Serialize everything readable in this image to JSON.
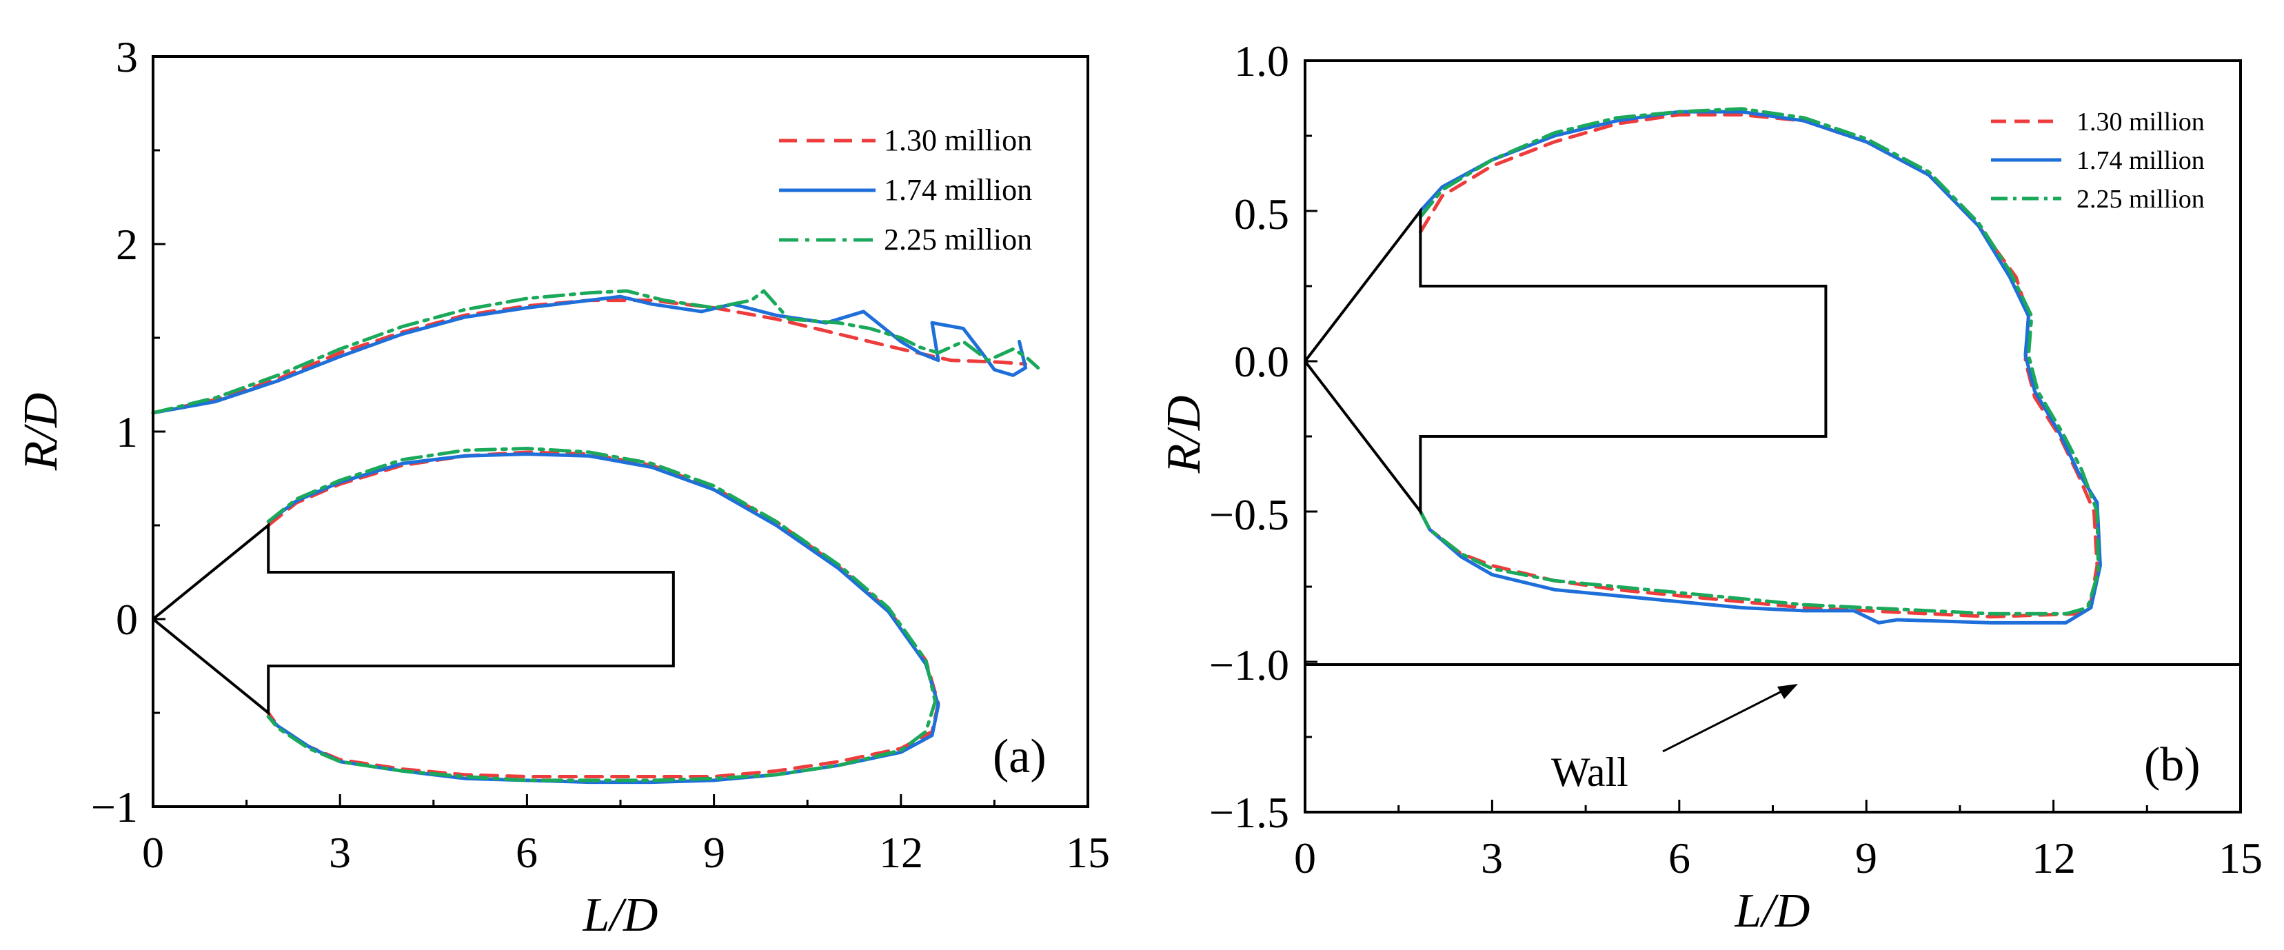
{
  "chart_data": [
    {
      "type": "line",
      "panel_label": "(a)",
      "xlabel": "L/D",
      "ylabel": "R/D",
      "xlim": [
        0,
        15
      ],
      "ylim": [
        -1,
        3
      ],
      "xticks": [
        "0",
        "3",
        "6",
        "9",
        "12",
        "15"
      ],
      "yticks": [
        "−1",
        "0",
        "1",
        "2",
        "3"
      ],
      "legend": [
        "1.30 million",
        "1.74 million",
        "2.25 million"
      ],
      "legend_position": "top-right",
      "series": [
        {
          "name": "1.30 million",
          "color": "#ee3b3b",
          "style": "dashed",
          "upper_curve": [
            [
              0,
              1.1
            ],
            [
              1,
              1.17
            ],
            [
              2,
              1.28
            ],
            [
              3,
              1.42
            ],
            [
              4,
              1.53
            ],
            [
              5,
              1.62
            ],
            [
              6,
              1.67
            ],
            [
              7,
              1.7
            ],
            [
              8,
              1.7
            ],
            [
              9,
              1.66
            ],
            [
              10,
              1.6
            ],
            [
              11,
              1.52
            ],
            [
              12,
              1.44
            ],
            [
              12.8,
              1.38
            ],
            [
              13.6,
              1.37
            ],
            [
              14,
              1.36
            ]
          ],
          "lower_curve": [
            [
              1.85,
              0.5
            ],
            [
              2.3,
              0.62
            ],
            [
              3,
              0.72
            ],
            [
              4,
              0.82
            ],
            [
              5,
              0.87
            ],
            [
              6,
              0.89
            ],
            [
              7,
              0.88
            ],
            [
              8,
              0.82
            ],
            [
              9,
              0.7
            ],
            [
              10,
              0.52
            ],
            [
              11,
              0.28
            ],
            [
              11.8,
              0.05
            ],
            [
              12.4,
              -0.22
            ],
            [
              12.6,
              -0.45
            ],
            [
              12.5,
              -0.6
            ],
            [
              12,
              -0.69
            ],
            [
              11,
              -0.76
            ],
            [
              10,
              -0.81
            ],
            [
              9,
              -0.84
            ],
            [
              8,
              -0.84
            ],
            [
              7,
              -0.84
            ],
            [
              6,
              -0.84
            ],
            [
              5,
              -0.83
            ],
            [
              4,
              -0.8
            ],
            [
              3,
              -0.75
            ],
            [
              2.5,
              -0.68
            ],
            [
              2,
              -0.57
            ],
            [
              1.85,
              -0.5
            ]
          ]
        },
        {
          "name": "1.74 million",
          "color": "#1e6fd9",
          "style": "solid",
          "upper_curve": [
            [
              0,
              1.1
            ],
            [
              1,
              1.16
            ],
            [
              2,
              1.27
            ],
            [
              3,
              1.4
            ],
            [
              4,
              1.52
            ],
            [
              5,
              1.61
            ],
            [
              6,
              1.66
            ],
            [
              7,
              1.7
            ],
            [
              7.5,
              1.72
            ],
            [
              8,
              1.68
            ],
            [
              8.8,
              1.64
            ],
            [
              9.3,
              1.68
            ],
            [
              10,
              1.62
            ],
            [
              10.8,
              1.58
            ],
            [
              11.4,
              1.64
            ],
            [
              12,
              1.48
            ],
            [
              12.3,
              1.42
            ],
            [
              12.6,
              1.38
            ],
            [
              12.5,
              1.58
            ],
            [
              13,
              1.55
            ],
            [
              13.3,
              1.42
            ],
            [
              13.5,
              1.33
            ],
            [
              13.8,
              1.3
            ],
            [
              14,
              1.34
            ],
            [
              13.9,
              1.48
            ]
          ],
          "lower_curve": [
            [
              1.85,
              0.52
            ],
            [
              2.3,
              0.63
            ],
            [
              3,
              0.73
            ],
            [
              4,
              0.83
            ],
            [
              5,
              0.87
            ],
            [
              6,
              0.88
            ],
            [
              7,
              0.87
            ],
            [
              8,
              0.81
            ],
            [
              9,
              0.69
            ],
            [
              10,
              0.5
            ],
            [
              11,
              0.27
            ],
            [
              11.8,
              0.04
            ],
            [
              12.4,
              -0.24
            ],
            [
              12.6,
              -0.46
            ],
            [
              12.5,
              -0.62
            ],
            [
              12,
              -0.71
            ],
            [
              11,
              -0.78
            ],
            [
              10,
              -0.83
            ],
            [
              9,
              -0.86
            ],
            [
              8,
              -0.87
            ],
            [
              7,
              -0.87
            ],
            [
              6,
              -0.86
            ],
            [
              5,
              -0.85
            ],
            [
              4,
              -0.81
            ],
            [
              3,
              -0.76
            ],
            [
              2.5,
              -0.68
            ],
            [
              2,
              -0.57
            ],
            [
              1.85,
              -0.52
            ]
          ]
        },
        {
          "name": "2.25 million",
          "color": "#1aa85a",
          "style": "dashdot",
          "upper_curve": [
            [
              0,
              1.1
            ],
            [
              1,
              1.18
            ],
            [
              2,
              1.3
            ],
            [
              3,
              1.44
            ],
            [
              4,
              1.56
            ],
            [
              5,
              1.65
            ],
            [
              6,
              1.71
            ],
            [
              7,
              1.74
            ],
            [
              7.6,
              1.75
            ],
            [
              8.2,
              1.7
            ],
            [
              9,
              1.66
            ],
            [
              9.6,
              1.7
            ],
            [
              9.8,
              1.75
            ],
            [
              10.2,
              1.6
            ],
            [
              11,
              1.58
            ],
            [
              11.5,
              1.55
            ],
            [
              12,
              1.5
            ],
            [
              12.3,
              1.45
            ],
            [
              12.6,
              1.42
            ],
            [
              13,
              1.48
            ],
            [
              13.4,
              1.38
            ],
            [
              13.8,
              1.44
            ],
            [
              14,
              1.4
            ],
            [
              14.2,
              1.34
            ]
          ],
          "lower_curve": [
            [
              1.85,
              0.52
            ],
            [
              2.3,
              0.64
            ],
            [
              3,
              0.74
            ],
            [
              4,
              0.85
            ],
            [
              5,
              0.9
            ],
            [
              6,
              0.91
            ],
            [
              7,
              0.89
            ],
            [
              8,
              0.83
            ],
            [
              9,
              0.71
            ],
            [
              10,
              0.52
            ],
            [
              11,
              0.29
            ],
            [
              11.8,
              0.06
            ],
            [
              12.4,
              -0.22
            ],
            [
              12.55,
              -0.44
            ],
            [
              12.4,
              -0.6
            ],
            [
              12,
              -0.7
            ],
            [
              11,
              -0.78
            ],
            [
              10,
              -0.83
            ],
            [
              9,
              -0.85
            ],
            [
              8,
              -0.86
            ],
            [
              7,
              -0.86
            ],
            [
              6,
              -0.86
            ],
            [
              5,
              -0.84
            ],
            [
              4,
              -0.81
            ],
            [
              3,
              -0.76
            ],
            [
              2.5,
              -0.69
            ],
            [
              2,
              -0.58
            ],
            [
              1.85,
              -0.52
            ]
          ]
        }
      ],
      "body_outline": [
        [
          0,
          0
        ],
        [
          1.85,
          0.5
        ],
        [
          1.85,
          0.25
        ],
        [
          8.35,
          0.25
        ],
        [
          8.35,
          -0.25
        ],
        [
          1.85,
          -0.25
        ],
        [
          1.85,
          -0.5
        ],
        [
          0,
          0
        ]
      ]
    },
    {
      "type": "line",
      "panel_label": "(b)",
      "xlabel": "L/D",
      "ylabel": "R/D",
      "xlim": [
        0,
        15
      ],
      "ylim": [
        -1.5,
        1.0
      ],
      "xticks": [
        "0",
        "3",
        "6",
        "9",
        "12",
        "15"
      ],
      "yticks": [
        "−1.5",
        "−1.0",
        "−0.5",
        "0.0",
        "0.5",
        "1.0"
      ],
      "legend": [
        "1.30 million",
        "1.74 million",
        "2.25 million"
      ],
      "legend_position": "top-right",
      "annotation": "Wall",
      "wall_y": -1.0,
      "series": [
        {
          "name": "1.30 million",
          "color": "#ee3b3b",
          "style": "dashed",
          "curve": [
            [
              1.85,
              0.43
            ],
            [
              2.2,
              0.55
            ],
            [
              3,
              0.65
            ],
            [
              4,
              0.73
            ],
            [
              5,
              0.79
            ],
            [
              6,
              0.82
            ],
            [
              7,
              0.82
            ],
            [
              8,
              0.8
            ],
            [
              9,
              0.73
            ],
            [
              10,
              0.62
            ],
            [
              10.8,
              0.45
            ],
            [
              11.4,
              0.28
            ],
            [
              11.6,
              0.15
            ],
            [
              11.55,
              0.0
            ],
            [
              11.7,
              -0.12
            ],
            [
              12.1,
              -0.25
            ],
            [
              12.4,
              -0.38
            ],
            [
              12.65,
              -0.5
            ],
            [
              12.7,
              -0.68
            ],
            [
              12.6,
              -0.8
            ],
            [
              12.4,
              -0.84
            ],
            [
              11,
              -0.85
            ],
            [
              10,
              -0.84
            ],
            [
              9,
              -0.83
            ],
            [
              8,
              -0.82
            ],
            [
              7,
              -0.8
            ],
            [
              6,
              -0.78
            ],
            [
              5,
              -0.76
            ],
            [
              4,
              -0.73
            ],
            [
              3,
              -0.68
            ],
            [
              2.5,
              -0.64
            ],
            [
              2,
              -0.56
            ],
            [
              1.85,
              -0.5
            ]
          ]
        },
        {
          "name": "1.74 million",
          "color": "#1e6fd9",
          "style": "solid",
          "curve": [
            [
              1.85,
              0.5
            ],
            [
              2.2,
              0.58
            ],
            [
              3,
              0.67
            ],
            [
              4,
              0.75
            ],
            [
              5,
              0.8
            ],
            [
              6,
              0.83
            ],
            [
              7,
              0.83
            ],
            [
              8,
              0.8
            ],
            [
              9,
              0.73
            ],
            [
              10,
              0.62
            ],
            [
              10.8,
              0.45
            ],
            [
              11.3,
              0.28
            ],
            [
              11.6,
              0.15
            ],
            [
              11.55,
              0.02
            ],
            [
              11.7,
              -0.1
            ],
            [
              12.1,
              -0.24
            ],
            [
              12.4,
              -0.37
            ],
            [
              12.7,
              -0.47
            ],
            [
              12.75,
              -0.68
            ],
            [
              12.6,
              -0.82
            ],
            [
              12.2,
              -0.87
            ],
            [
              11,
              -0.87
            ],
            [
              9.5,
              -0.86
            ],
            [
              9.2,
              -0.87
            ],
            [
              8.8,
              -0.83
            ],
            [
              8,
              -0.83
            ],
            [
              7,
              -0.82
            ],
            [
              6,
              -0.8
            ],
            [
              5,
              -0.78
            ],
            [
              4,
              -0.76
            ],
            [
              3,
              -0.71
            ],
            [
              2.5,
              -0.65
            ],
            [
              2,
              -0.56
            ],
            [
              1.85,
              -0.5
            ]
          ]
        },
        {
          "name": "2.25 million",
          "color": "#1aa85a",
          "style": "dashdot",
          "curve": [
            [
              1.85,
              0.48
            ],
            [
              2.2,
              0.57
            ],
            [
              3,
              0.67
            ],
            [
              4,
              0.76
            ],
            [
              5,
              0.81
            ],
            [
              6,
              0.83
            ],
            [
              7,
              0.84
            ],
            [
              8,
              0.81
            ],
            [
              9,
              0.74
            ],
            [
              10,
              0.63
            ],
            [
              10.8,
              0.46
            ],
            [
              11.3,
              0.3
            ],
            [
              11.65,
              0.15
            ],
            [
              11.6,
              0.02
            ],
            [
              11.75,
              -0.1
            ],
            [
              12.15,
              -0.24
            ],
            [
              12.45,
              -0.36
            ],
            [
              12.7,
              -0.5
            ],
            [
              12.72,
              -0.7
            ],
            [
              12.55,
              -0.82
            ],
            [
              12.2,
              -0.84
            ],
            [
              11,
              -0.84
            ],
            [
              10,
              -0.83
            ],
            [
              9,
              -0.82
            ],
            [
              8,
              -0.81
            ],
            [
              7,
              -0.79
            ],
            [
              6,
              -0.77
            ],
            [
              5,
              -0.75
            ],
            [
              4,
              -0.73
            ],
            [
              3,
              -0.69
            ],
            [
              2.5,
              -0.64
            ],
            [
              2,
              -0.56
            ],
            [
              1.85,
              -0.5
            ]
          ]
        }
      ],
      "body_outline": [
        [
          0,
          0
        ],
        [
          1.85,
          0.5
        ],
        [
          1.85,
          0.25
        ],
        [
          8.35,
          0.25
        ],
        [
          8.35,
          -0.25
        ],
        [
          1.85,
          -0.25
        ],
        [
          1.85,
          -0.5
        ],
        [
          0,
          0
        ]
      ]
    }
  ]
}
